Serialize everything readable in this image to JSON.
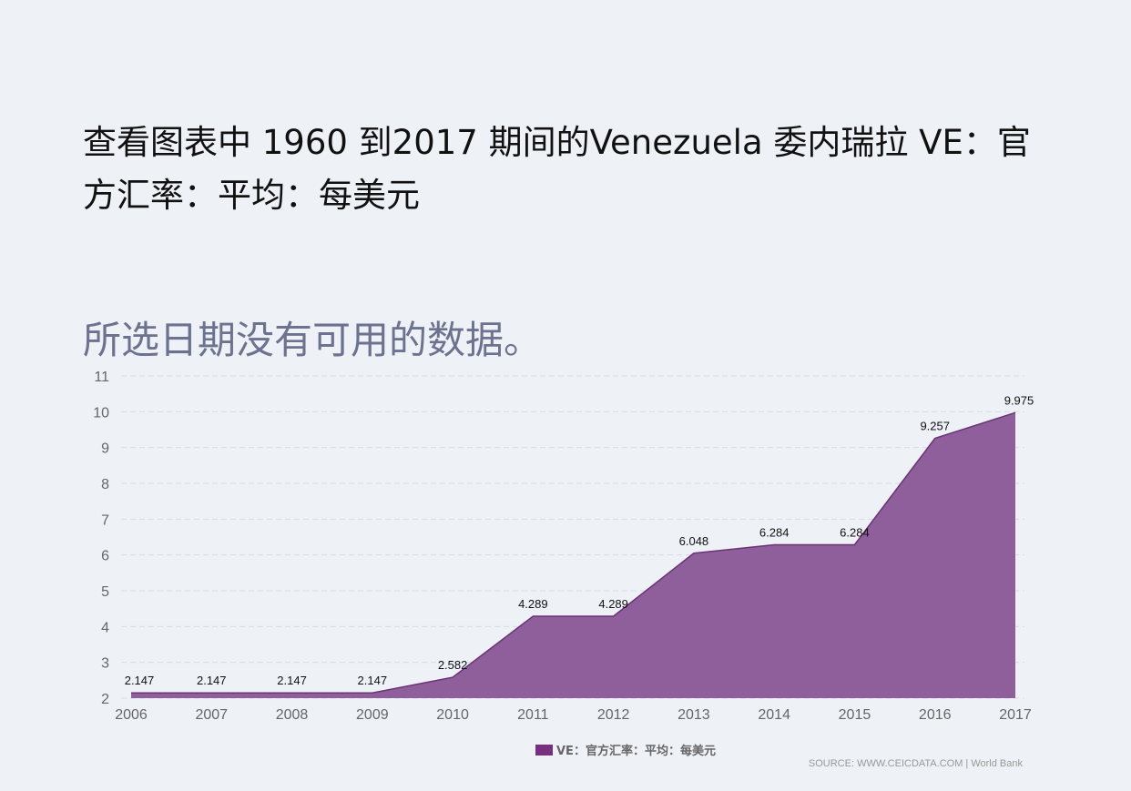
{
  "title": "查看图表中 1960 到2017 期间的Venezuela 委内瑞拉 VE：官方汇率：平均：每美元",
  "no_data_message": "所选日期没有可用的数据。",
  "source": "SOURCE: WWW.CEICDATA.COM | World Bank",
  "chart_data": {
    "type": "area",
    "x": [
      "2006",
      "2007",
      "2008",
      "2009",
      "2010",
      "2011",
      "2012",
      "2013",
      "2014",
      "2015",
      "2016",
      "2017"
    ],
    "series": [
      {
        "name": "VE：官方汇率：平均：每美元",
        "values": [
          2.147,
          2.147,
          2.147,
          2.147,
          2.582,
          4.289,
          4.289,
          6.048,
          6.284,
          6.284,
          9.257,
          9.975
        ],
        "color": "#77307f"
      }
    ],
    "ylim": [
      2,
      11
    ],
    "yticks": [
      2,
      3,
      4,
      5,
      6,
      7,
      8,
      9,
      10,
      11
    ],
    "grid": true,
    "legend": "bottom"
  }
}
